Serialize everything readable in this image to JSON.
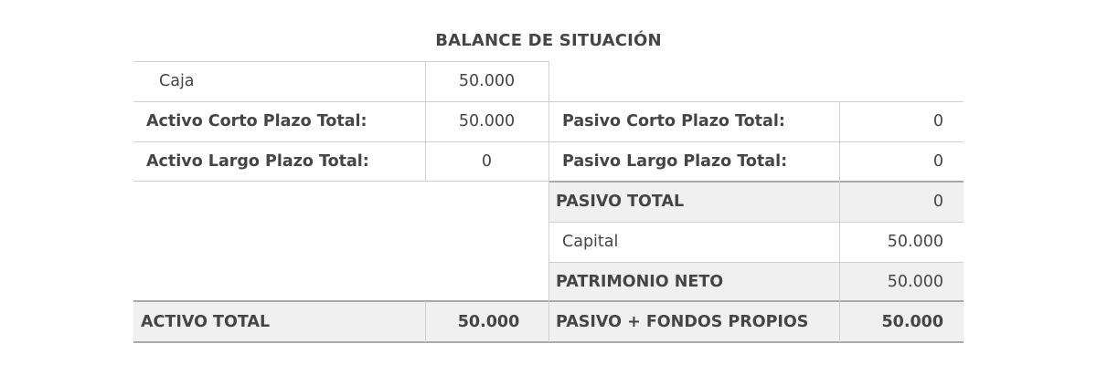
{
  "title": "BALANCE DE SITUACIÓN",
  "assets": {
    "caja": {
      "label": "Caja",
      "value": "50.000"
    },
    "short_term": {
      "label": "Activo Corto Plazo Total:",
      "value": "50.000"
    },
    "long_term": {
      "label": "Activo Largo Plazo Total:",
      "value": "0"
    },
    "total": {
      "label": "ACTIVO TOTAL",
      "value": "50.000"
    }
  },
  "liabilities": {
    "short_term": {
      "label": "Pasivo Corto Plazo Total:",
      "value": "0"
    },
    "long_term": {
      "label": "Pasivo Largo Plazo Total:",
      "value": "0"
    },
    "total": {
      "label": "PASIVO TOTAL",
      "value": "0"
    },
    "capital": {
      "label": "Capital",
      "value": "50.000"
    },
    "equity": {
      "label": "PATRIMONIO NETO",
      "value": "50.000"
    },
    "grand_total": {
      "label": "PASIVO + FONDOS PROPIOS",
      "value": "50.000"
    }
  }
}
